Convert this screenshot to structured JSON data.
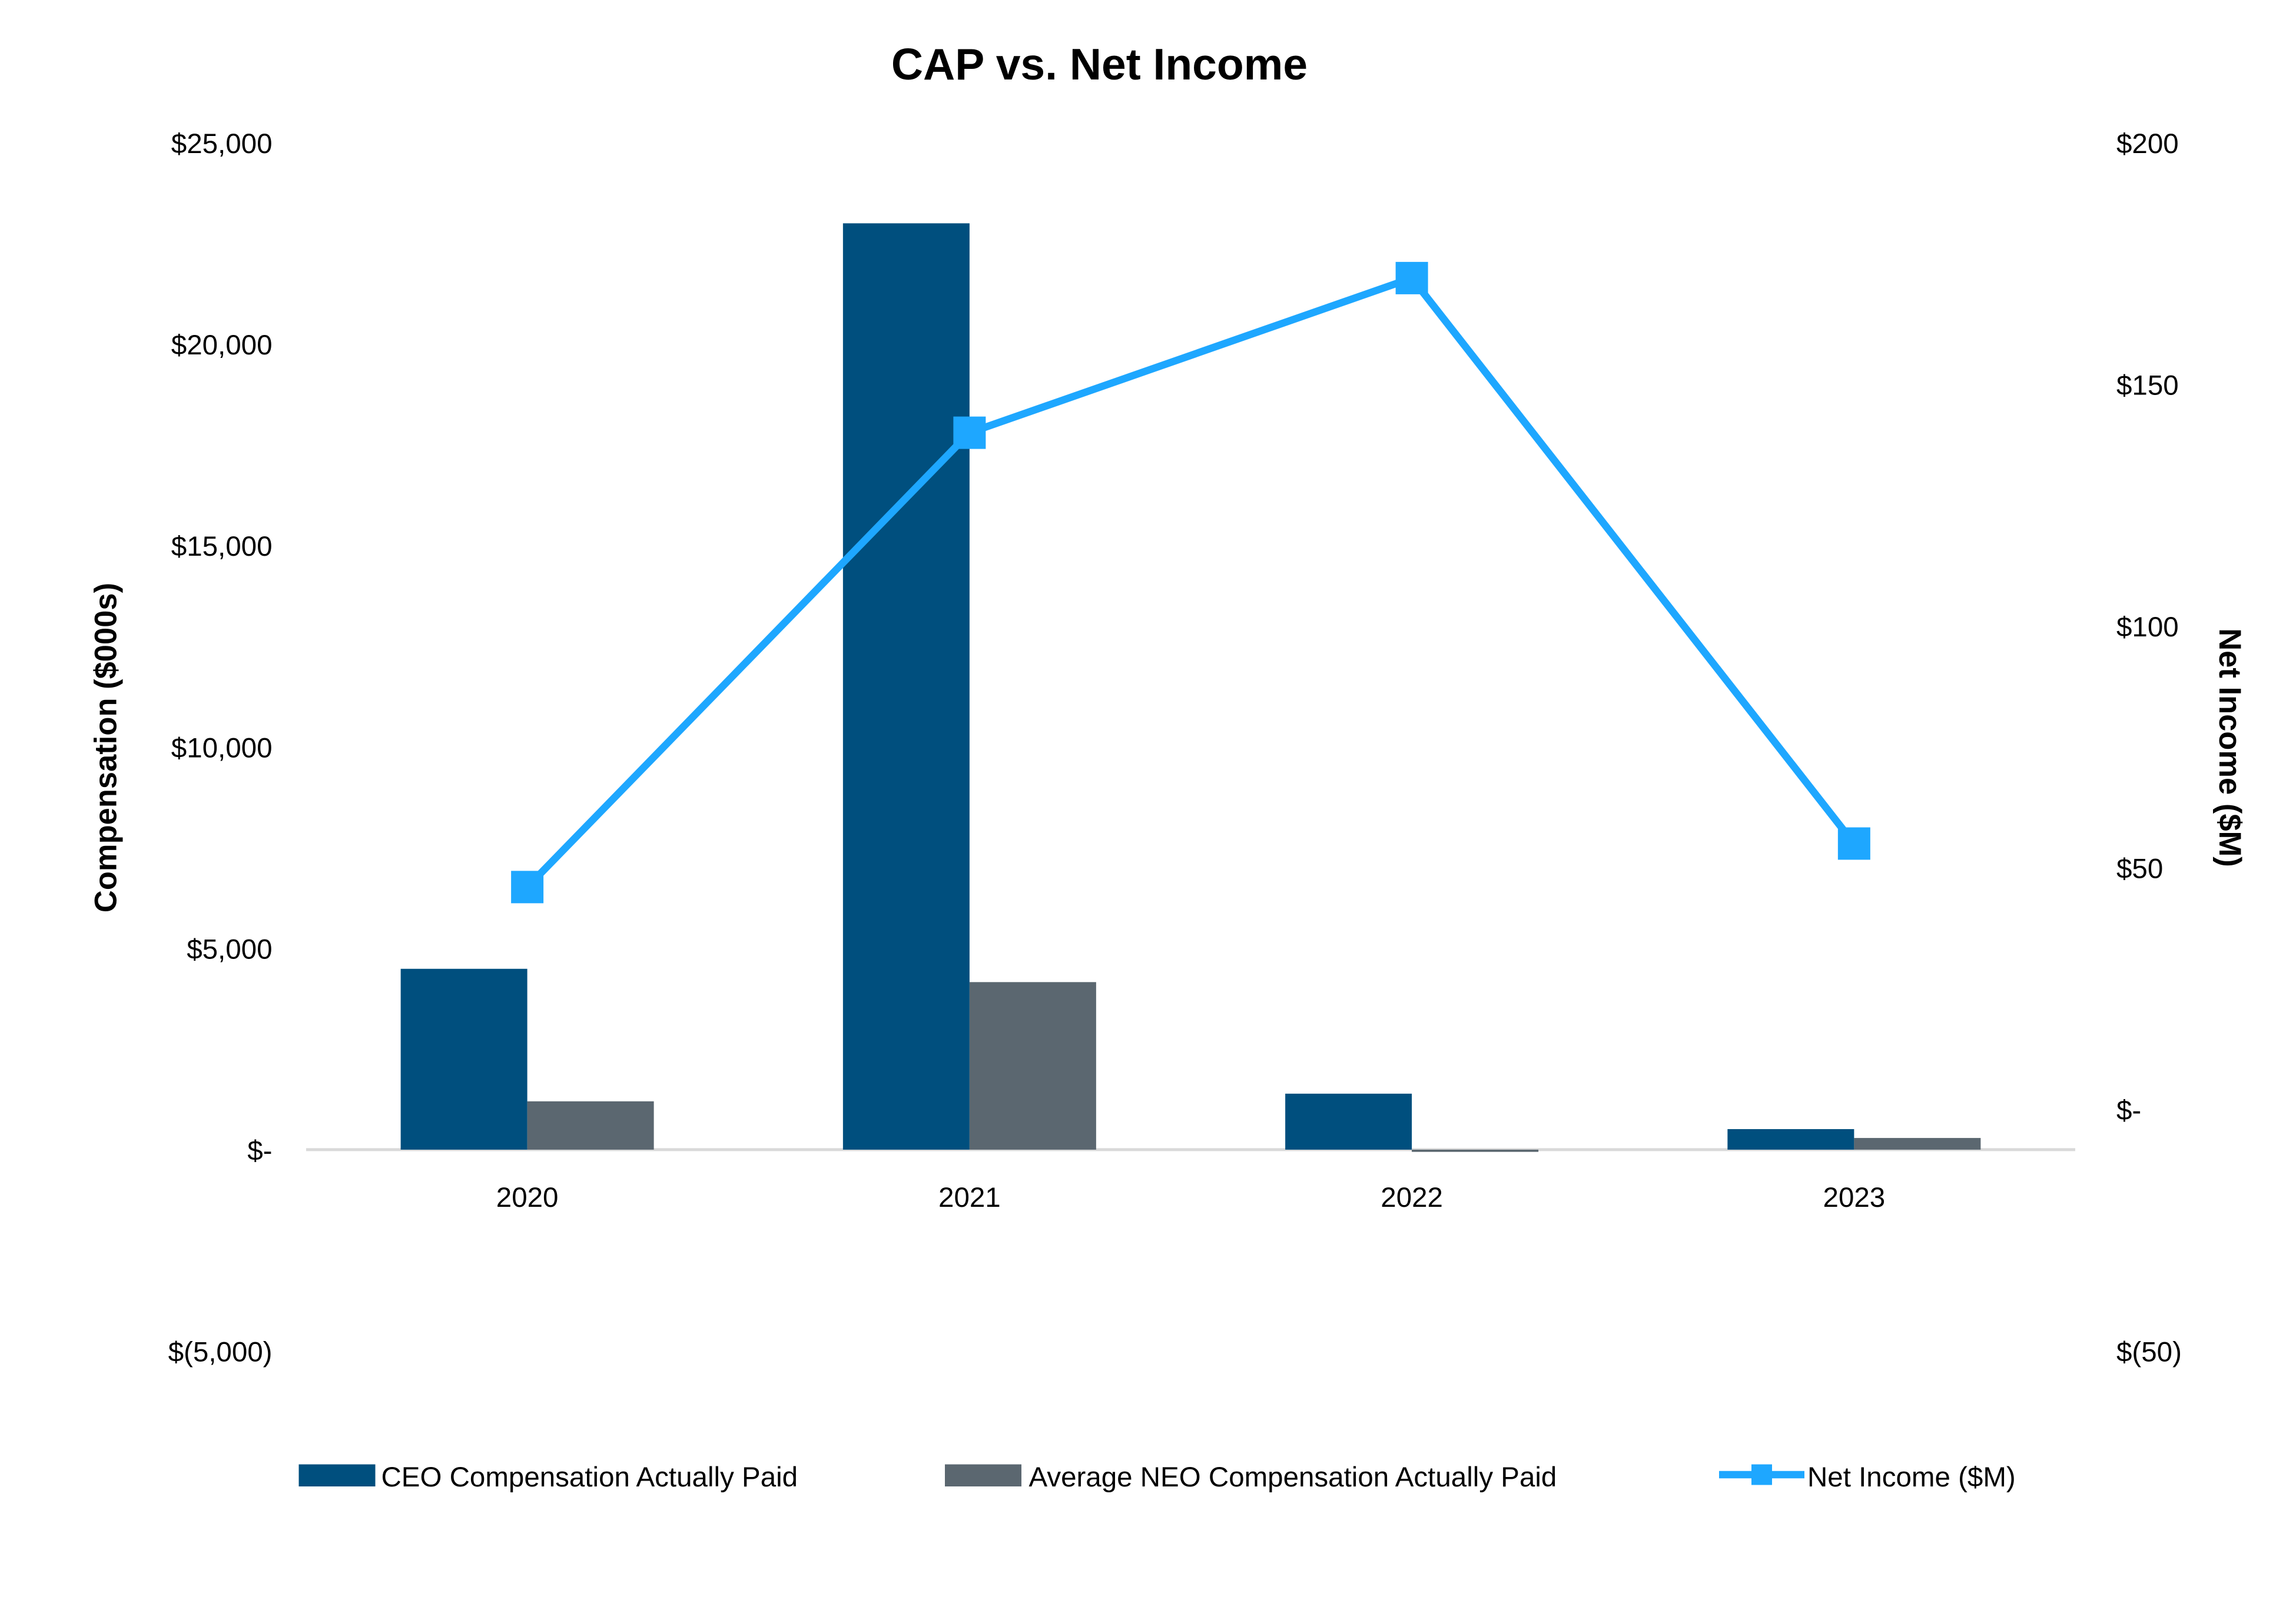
{
  "chart_data": {
    "type": "bar",
    "title": "CAP vs. Net Income",
    "categories": [
      "2020",
      "2021",
      "2022",
      "2023"
    ],
    "ylabel": "Compensation ($000s)",
    "y2label": "Net Income ($M)",
    "ylim": [
      -5000,
      25000
    ],
    "y2lim": [
      -50,
      200
    ],
    "yticks": [
      "$(5,000)",
      "$-",
      "$5,000",
      "$10,000",
      "$15,000",
      "$20,000",
      "$25,000"
    ],
    "y2ticks": [
      "$(50)",
      "$-",
      "$50",
      "$100",
      "$150",
      "$200"
    ],
    "grid": false,
    "legend_position": "bottom",
    "series": [
      {
        "name": "CEO Compensation Actually Paid",
        "type": "bar",
        "axis": "left",
        "color": "#004F7E",
        "values": [
          4490,
          23000,
          1390,
          510
        ]
      },
      {
        "name": "Average NEO Compensation Actually Paid",
        "type": "bar",
        "axis": "left",
        "color": "#5B6770",
        "values": [
          1200,
          4160,
          -50,
          290
        ]
      },
      {
        "name": "Net Income ($M)",
        "type": "line",
        "marker": "square",
        "axis": "right",
        "color": "#1EA7FF",
        "values": [
          46,
          140,
          172,
          55
        ]
      }
    ]
  }
}
